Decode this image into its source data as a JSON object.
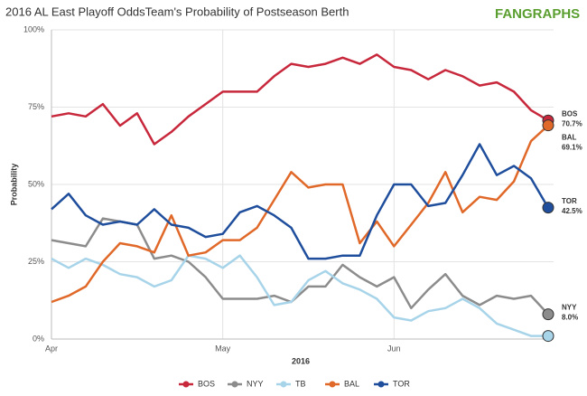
{
  "chart_data": {
    "type": "line",
    "title": "2016 AL East Playoff OddsTeam's Probability of Postseason Berth",
    "logo_text": "FANGRAPHS",
    "x_label": "2016",
    "y_label": "Probability",
    "categories": [
      "Apr",
      null,
      null,
      null,
      null,
      null,
      null,
      null,
      null,
      null,
      "May",
      null,
      null,
      null,
      null,
      null,
      null,
      null,
      null,
      null,
      "Jun",
      null,
      null,
      null,
      null,
      null,
      null,
      null,
      null,
      null
    ],
    "ylim": [
      0,
      100
    ],
    "yticks": [
      {
        "value": 0,
        "label": "0%"
      },
      {
        "value": 25,
        "label": "25%"
      },
      {
        "value": 50,
        "label": "50%"
      },
      {
        "value": 75,
        "label": "75%"
      },
      {
        "value": 100,
        "label": "100%"
      }
    ],
    "grid": true,
    "legend": "bottom",
    "series": [
      {
        "name": "BOS",
        "color": "#c8283c",
        "end_label": "70.7%",
        "values": [
          72,
          73,
          72,
          76,
          69,
          73,
          63,
          67,
          72,
          76,
          80,
          80,
          80,
          85,
          89,
          88,
          89,
          91,
          89,
          92,
          88,
          87,
          84,
          87,
          85,
          82,
          83,
          80,
          74,
          70.7
        ]
      },
      {
        "name": "NYY",
        "color": "#8c8c8c",
        "end_label": "8.0%",
        "values": [
          32,
          31,
          30,
          39,
          38,
          37,
          26,
          27,
          25,
          20,
          13,
          13,
          13,
          14,
          12,
          17,
          17,
          24,
          20,
          17,
          20,
          10,
          16,
          21,
          14,
          11,
          14,
          13,
          14,
          8.0
        ]
      },
      {
        "name": "TB",
        "color": "#a8d4ea",
        "end_label": null,
        "values": [
          26,
          23,
          26,
          24,
          21,
          20,
          17,
          19,
          27,
          26,
          23,
          27,
          20,
          11,
          12,
          19,
          22,
          18,
          16,
          13,
          7,
          6,
          9,
          10,
          13,
          10,
          5,
          3,
          1,
          1
        ]
      },
      {
        "name": "BAL",
        "color": "#e0692a",
        "end_label": "69.1%",
        "values": [
          12,
          14,
          17,
          25,
          31,
          30,
          28,
          40,
          27,
          28,
          32,
          32,
          36,
          45,
          54,
          49,
          50,
          50,
          31,
          38,
          30,
          37,
          44,
          54,
          41,
          46,
          45,
          51,
          64,
          69.1
        ]
      },
      {
        "name": "TOR",
        "color": "#1f4e9c",
        "end_label": "42.5%",
        "values": [
          42,
          47,
          40,
          37,
          38,
          37,
          42,
          37,
          36,
          33,
          34,
          41,
          43,
          40,
          36,
          26,
          26,
          27,
          27,
          40,
          50,
          50,
          43,
          44,
          53,
          63,
          53,
          56,
          52,
          42.5
        ]
      }
    ]
  }
}
